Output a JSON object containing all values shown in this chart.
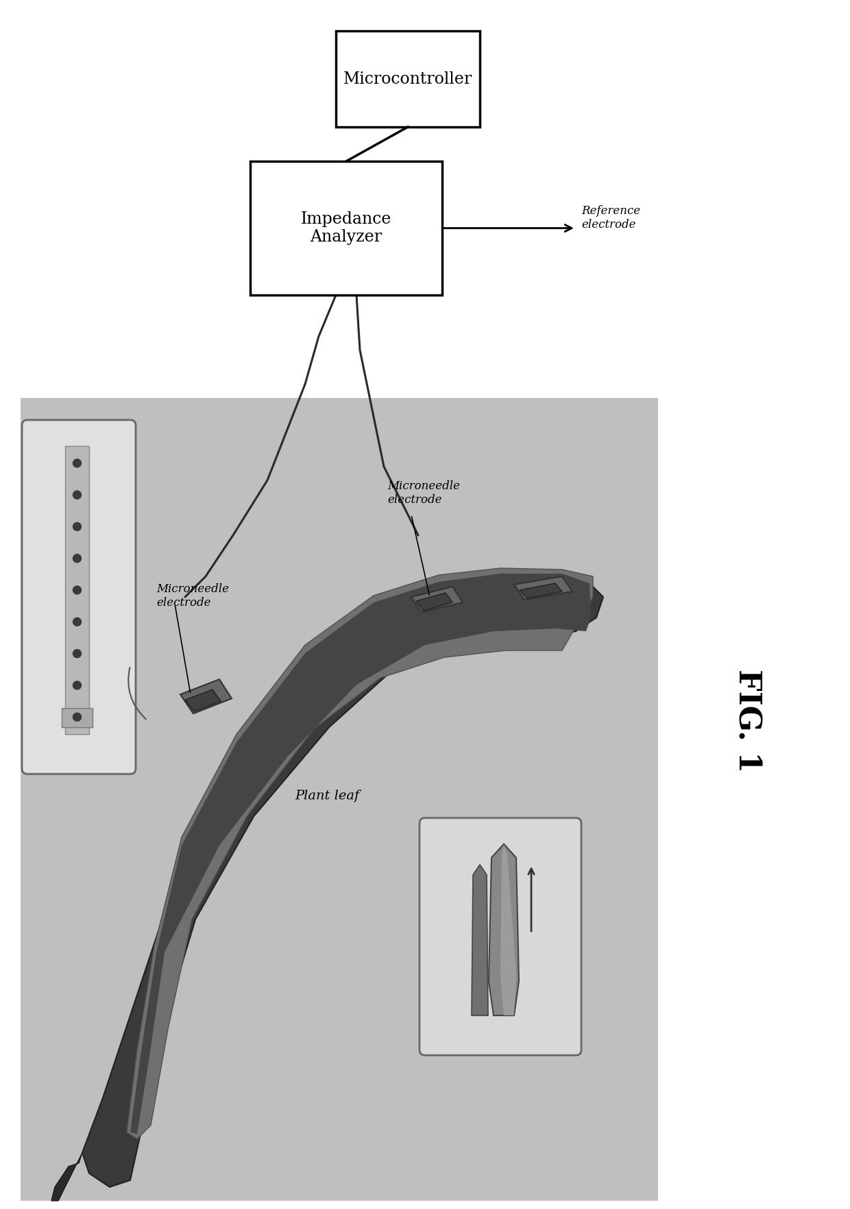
{
  "fig_label": "FIG. 1",
  "microcontroller_label": "Microcontroller",
  "impedance_label": "Impedance\nAnalyzer",
  "microneedle_label_left": "Microneedle\nelectrode",
  "microneedle_label_right": "Microneedle\nelectrode",
  "reference_label": "Reference\nelectrode",
  "plant_leaf_label": "Plant leaf",
  "bg_color": "#ffffff",
  "gray_bg": "#c0bfbf",
  "inset_bg": "#e8e8e8"
}
